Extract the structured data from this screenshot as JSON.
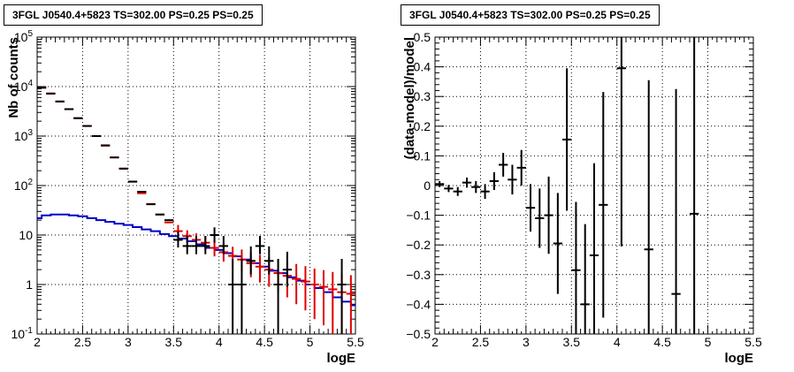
{
  "chart_data": [
    {
      "type": "line",
      "title": "3FGL J0540.4+5823 TS=302.00 PS=0.25 PS=0.25",
      "xlabel": "logE",
      "ylabel": "Nb of counts",
      "yscale": "log",
      "xlim": [
        2,
        5.5
      ],
      "ylim": [
        0.1,
        100000
      ],
      "grid": true,
      "x_ticks": [
        "2",
        "2.5",
        "3",
        "3.5",
        "4",
        "4.5",
        "5",
        "5.5"
      ],
      "y_ticks": [
        "10^-1",
        "1",
        "10",
        "10^2",
        "10^3",
        "10^4",
        "10^5"
      ],
      "colors": {
        "data": "#000000",
        "model": "#e00000",
        "source": "#0000cc"
      },
      "series": [
        {
          "role": "data",
          "x": [
            2.05,
            2.15,
            2.25,
            2.35,
            2.45,
            2.55,
            2.65,
            2.75,
            2.85,
            2.95,
            3.05,
            3.15,
            3.25,
            3.35,
            3.45,
            3.55,
            3.65,
            3.75,
            3.85,
            3.95,
            4.05,
            4.15,
            4.25,
            4.35,
            4.45,
            4.55,
            4.65,
            4.75,
            4.85,
            4.95,
            5.05,
            5.15,
            5.25,
            5.35
          ],
          "y": [
            9500,
            7200,
            5000,
            3500,
            2300,
            1600,
            1000,
            650,
            370,
            220,
            120,
            75,
            42,
            26,
            20,
            8,
            6,
            6,
            6,
            10,
            6,
            1,
            1,
            3,
            6,
            3,
            1,
            2,
            null,
            null,
            null,
            null,
            null,
            1
          ],
          "yerr_low": [
            null,
            null,
            null,
            null,
            null,
            null,
            null,
            null,
            null,
            null,
            null,
            null,
            null,
            null,
            null,
            2.4,
            1.9,
            1.9,
            1.9,
            3,
            1.9,
            0.9,
            0.9,
            1.4,
            1.9,
            1.4,
            0.9,
            1.1,
            null,
            null,
            null,
            null,
            null,
            0.9
          ],
          "yerr_high": [
            null,
            null,
            null,
            null,
            null,
            null,
            null,
            null,
            null,
            null,
            null,
            null,
            null,
            null,
            null,
            3.8,
            3.6,
            3.6,
            3.6,
            4.3,
            3.6,
            2.3,
            2.3,
            2.9,
            3.6,
            2.9,
            2.3,
            2.6,
            null,
            null,
            null,
            null,
            null,
            2.3
          ]
        },
        {
          "role": "model",
          "x": [
            2.05,
            2.15,
            2.25,
            2.35,
            2.45,
            2.55,
            2.65,
            2.75,
            2.85,
            2.95,
            3.05,
            3.15,
            3.25,
            3.35,
            3.45,
            3.55,
            3.65,
            3.75,
            3.85,
            3.95,
            4.05,
            4.15,
            4.25,
            4.35,
            4.45,
            4.55,
            4.65,
            4.75,
            4.85,
            4.95,
            5.05,
            5.15,
            5.25,
            5.35,
            5.45
          ],
          "y": [
            9500,
            7300,
            5000,
            3500,
            2300,
            1600,
            1000,
            640,
            370,
            220,
            120,
            70,
            42,
            26,
            18,
            12,
            9.5,
            8,
            7,
            5.5,
            4.5,
            3.8,
            3.2,
            2.7,
            2.3,
            2,
            1.7,
            1.5,
            1.3,
            1.15,
            1,
            0.9,
            0.8,
            0.7,
            0.65
          ],
          "yerr_low": [
            null,
            null,
            null,
            null,
            null,
            null,
            null,
            null,
            null,
            null,
            null,
            null,
            null,
            null,
            null,
            3,
            2.5,
            2.2,
            2,
            1.8,
            1.6,
            1.5,
            1.4,
            1.3,
            1.2,
            1.1,
            1,
            0.95,
            0.9,
            0.85,
            0.8,
            0.75,
            0.7,
            0.65,
            0.6
          ],
          "yerr_high": [
            null,
            null,
            null,
            null,
            null,
            null,
            null,
            null,
            null,
            null,
            null,
            null,
            null,
            null,
            null,
            4,
            3,
            2.8,
            2.6,
            2.4,
            2.2,
            2,
            1.9,
            1.8,
            1.7,
            1.6,
            1.5,
            1.4,
            1.3,
            1.2,
            1.1,
            1.05,
            1,
            0.95,
            0.9
          ]
        },
        {
          "role": "source",
          "x": [
            2.0,
            2.1,
            2.2,
            2.3,
            2.4,
            2.5,
            2.6,
            2.7,
            2.8,
            2.9,
            3.0,
            3.1,
            3.2,
            3.3,
            3.4,
            3.5,
            3.6,
            3.7,
            3.8,
            3.9,
            4.0,
            4.1,
            4.2,
            4.3,
            4.4,
            4.5,
            4.6,
            4.7,
            4.8,
            4.9,
            5.0,
            5.1,
            5.2,
            5.3,
            5.4,
            5.5
          ],
          "y": [
            22,
            25,
            26,
            26,
            25,
            24,
            22,
            20,
            18.5,
            17,
            16,
            14.5,
            13,
            12,
            10.5,
            9.5,
            8.5,
            7.5,
            6.5,
            5.5,
            5,
            4.3,
            3.7,
            3.2,
            2.7,
            2.3,
            1.9,
            1.7,
            1.4,
            1.2,
            1,
            0.85,
            0.7,
            0.55,
            0.45,
            0.38
          ]
        }
      ]
    },
    {
      "type": "scatter",
      "title": "3FGL J0540.4+5823 TS=302.00 PS=0.25 PS=0.25",
      "xlabel": "logE",
      "ylabel": "(data-model)/model",
      "xlim": [
        2,
        5.5
      ],
      "ylim": [
        -0.5,
        0.5
      ],
      "grid": true,
      "x_ticks": [
        "2",
        "2.5",
        "3",
        "3.5",
        "4",
        "4.5",
        "5",
        "5.5"
      ],
      "y_ticks": [
        "−0.5",
        "−0.4",
        "−0.3",
        "−0.2",
        "−0.1",
        "0",
        "0.1",
        "0.2",
        "0.3",
        "0.4",
        "0.5"
      ],
      "series": [
        {
          "x": [
            2.05,
            2.15,
            2.25,
            2.35,
            2.45,
            2.55,
            2.65,
            2.75,
            2.85,
            2.95,
            3.05,
            3.15,
            3.25,
            3.35,
            3.45,
            3.55,
            3.65,
            3.75,
            3.85,
            4.05,
            4.35,
            4.65,
            4.85
          ],
          "y": [
            0.005,
            -0.01,
            -0.02,
            0.01,
            -0.005,
            -0.02,
            0.015,
            0.07,
            0.02,
            0.06,
            -0.075,
            -0.11,
            -0.1,
            -0.195,
            0.155,
            -0.285,
            -0.4,
            -0.235,
            -0.065,
            0.395,
            -0.215,
            -0.365,
            -0.095
          ],
          "yerr": [
            0.01,
            0.012,
            0.015,
            0.017,
            0.02,
            0.025,
            0.03,
            0.04,
            0.05,
            0.06,
            0.08,
            0.1,
            0.13,
            0.17,
            0.24,
            0.23,
            0.27,
            0.31,
            0.38,
            0.6,
            0.57,
            0.69,
            0.78
          ]
        }
      ]
    }
  ]
}
